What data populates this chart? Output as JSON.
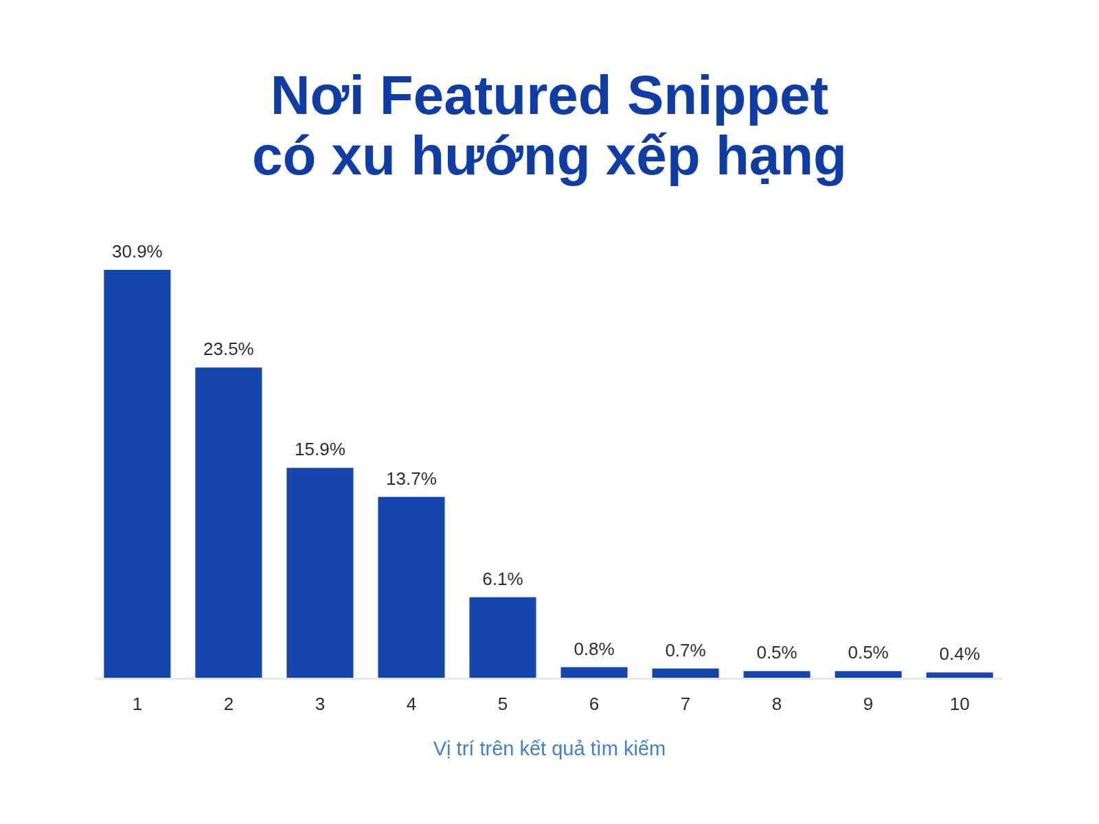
{
  "chart_data": {
    "type": "bar",
    "title": "Nơi Featured Snippet có xu hướng xếp hạng",
    "xlabel": "Vị trí trên kết quả tìm kiếm",
    "categories": [
      "1",
      "2",
      "3",
      "4",
      "5",
      "6",
      "7",
      "8",
      "9",
      "10"
    ],
    "values": [
      30.9,
      23.5,
      15.9,
      13.7,
      6.1,
      0.8,
      0.7,
      0.5,
      0.5,
      0.4
    ],
    "value_labels": [
      "30.9%",
      "23.5%",
      "15.9%",
      "13.7%",
      "6.1%",
      "0.8%",
      "0.7%",
      "0.5%",
      "0.5%",
      "0.4%"
    ],
    "color": "#1446ad"
  }
}
